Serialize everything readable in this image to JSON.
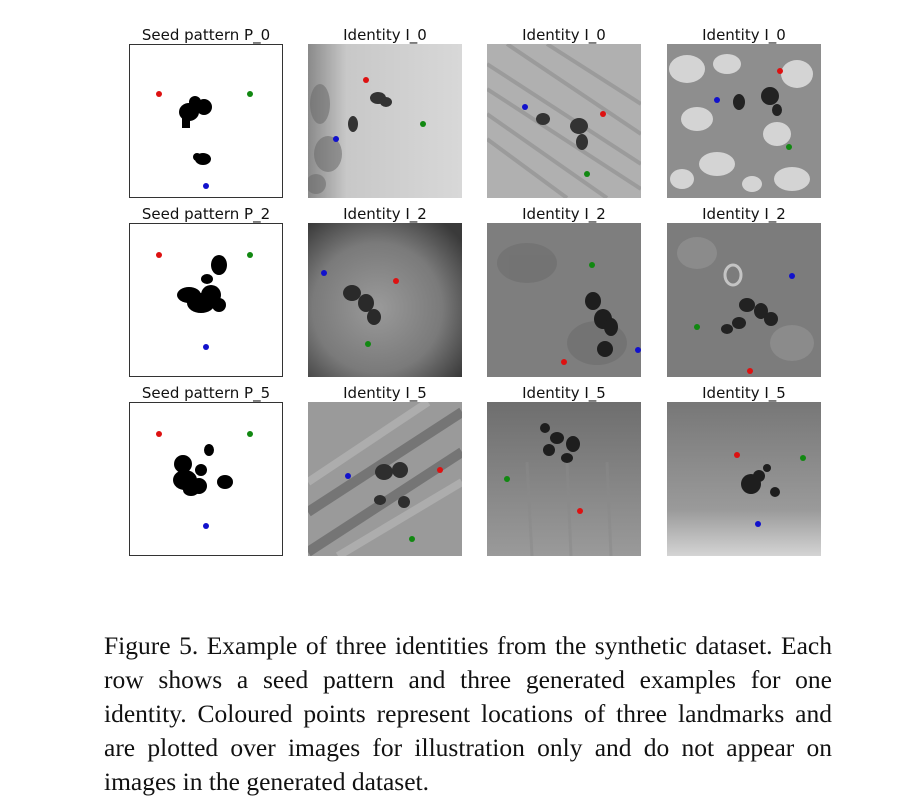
{
  "figure": {
    "rows": [
      {
        "panels": [
          {
            "title": "Seed pattern P_0",
            "type": "seed"
          },
          {
            "title": "Identity I_0",
            "type": "generated",
            "tone": "light"
          },
          {
            "title": "Identity I_0",
            "type": "generated",
            "tone": "streaky"
          },
          {
            "title": "Identity I_0",
            "type": "generated",
            "tone": "mottled"
          }
        ]
      },
      {
        "panels": [
          {
            "title": "Seed pattern P_2",
            "type": "seed"
          },
          {
            "title": "Identity I_2",
            "type": "generated",
            "tone": "dark"
          },
          {
            "title": "Identity I_2",
            "type": "generated",
            "tone": "mid"
          },
          {
            "title": "Identity I_2",
            "type": "generated",
            "tone": "mid"
          }
        ]
      },
      {
        "panels": [
          {
            "title": "Seed pattern P_5",
            "type": "seed"
          },
          {
            "title": "Identity I_5",
            "type": "generated",
            "tone": "diagonal"
          },
          {
            "title": "Identity I_5",
            "type": "generated",
            "tone": "mid"
          },
          {
            "title": "Identity I_5",
            "type": "generated",
            "tone": "mid"
          }
        ]
      }
    ],
    "landmark_colors": {
      "red": "#dd1111",
      "green": "#118811",
      "blue": "#1111cc"
    }
  },
  "caption": {
    "text": "Figure 5. Example of three identities from the synthetic dataset. Each row shows a seed pattern and three generated examples for one identity.  Coloured points represent locations of three landmarks and are plotted over images for illustration only and do not appear on images in the generated dataset."
  }
}
